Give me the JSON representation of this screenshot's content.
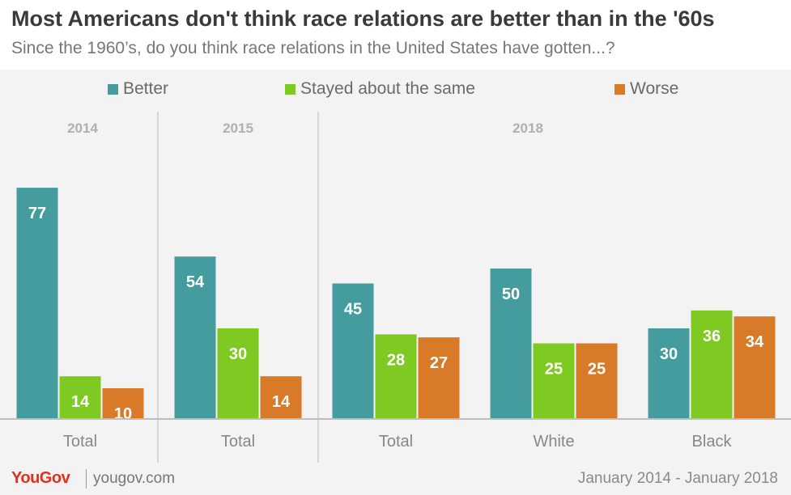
{
  "title": "Most Americans don't think race relations are better than in the '60s",
  "subtitle": "Since the 1960’s, do you think race relations in the United States have gotten...?",
  "footer": {
    "logo": "YouGov",
    "site": "yougov.com",
    "date_range": "January 2014 - January 2018"
  },
  "colors": {
    "better": "#459c9e",
    "same": "#7fca22",
    "worse": "#d97a28"
  },
  "chart_data": {
    "type": "bar",
    "ylim": [
      0,
      100
    ],
    "groups": [
      "2014",
      "2015",
      "2018"
    ],
    "categories": [
      "Total",
      "Total",
      "Total",
      "White",
      "Black"
    ],
    "category_groups": [
      "2014",
      "2015",
      "2018",
      "2018",
      "2018"
    ],
    "series": [
      {
        "name": "Better",
        "values": [
          77,
          54,
          45,
          50,
          30
        ]
      },
      {
        "name": "Stayed about the same",
        "values": [
          14,
          30,
          28,
          25,
          36
        ]
      },
      {
        "name": "Worse",
        "values": [
          10,
          14,
          27,
          25,
          34
        ]
      }
    ]
  }
}
